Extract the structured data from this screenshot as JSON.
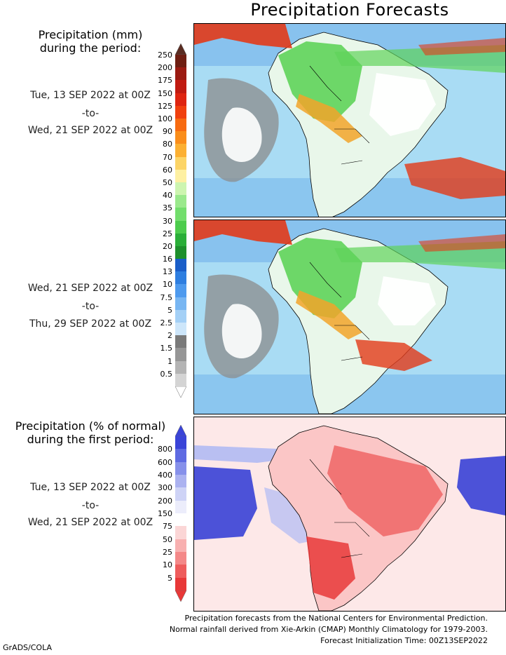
{
  "title": "Precipitation Forecasts",
  "side_heading_mm": [
    "Precipitation (mm)",
    "during the period:"
  ],
  "side_heading_pct": [
    "Precipitation (% of normal)",
    "during the first period:"
  ],
  "period1": {
    "start": "Tue, 13 SEP 2022 at 00Z",
    "to": "-to-",
    "end": "Wed, 21 SEP 2022 at 00Z"
  },
  "period2": {
    "start": "Wed, 21 SEP 2022 at 00Z",
    "to": "-to-",
    "end": "Thu, 29 SEP 2022 at 00Z"
  },
  "period3": {
    "start": "Tue, 13 SEP 2022 at 00Z",
    "to": "-to-",
    "end": "Wed, 21 SEP 2022 at 00Z"
  },
  "precip_scale": {
    "labels": [
      "250",
      "200",
      "175",
      "150",
      "125",
      "100",
      "90",
      "80",
      "70",
      "60",
      "50",
      "40",
      "35",
      "30",
      "25",
      "20",
      "16",
      "13",
      "10",
      "7.5",
      "5",
      "2.5",
      "2",
      "1.5",
      "1",
      "0.5"
    ],
    "colors": [
      "#6e1e12",
      "#9b1b12",
      "#c01a10",
      "#de2410",
      "#f0400e",
      "#f76a10",
      "#fa8d1a",
      "#fcb032",
      "#fcd466",
      "#fef0a2",
      "#cdf5b0",
      "#9ae98c",
      "#72de6c",
      "#4ccc4c",
      "#2aae38",
      "#1e8f2c",
      "#1a5ec8",
      "#2e7ee0",
      "#4e9aee",
      "#78b6f2",
      "#a4d0f6",
      "#cde6fa",
      "#7a7a7a",
      "#969696",
      "#b4b4b4",
      "#d4d4d4"
    ]
  },
  "pct_scale": {
    "labels": [
      "800",
      "600",
      "400",
      "300",
      "200",
      "150",
      "75",
      "50",
      "25",
      "10",
      "5"
    ],
    "colors": [
      "#3a44d8",
      "#5e6ae2",
      "#8690ea",
      "#abb2f0",
      "#ced3f6",
      "#ecedfb",
      "#ffffff",
      "#fbd6d6",
      "#f8b0b0",
      "#f48888",
      "#ee5c5c",
      "#e83838"
    ]
  },
  "footer": [
    "Precipitation forecasts from the National Centers for Environmental Prediction.",
    "Normal rainfall derived from Xie-Arkin (CMAP) Monthly Climatology for 1979-2003.",
    "Forecast Initialization Time: 00Z13SEP2022"
  ],
  "credit": "GrADS/COLA",
  "map_colors": {
    "ocean_light": "#a9dcf4",
    "ocean_mid": "#7fbcec",
    "ocean_deep": "#3f8fdc",
    "land_dry": "#ffffff",
    "dry_gray": "#8c8c8c",
    "wet_green": "#5fd35a",
    "very_wet": "#e23a18",
    "moderate": "#fad24e",
    "anom_red": "#f06a6a",
    "anom_pink": "#fbc6c6",
    "anom_blue": "#4c52d8",
    "anom_lightblue": "#b9bff2"
  }
}
